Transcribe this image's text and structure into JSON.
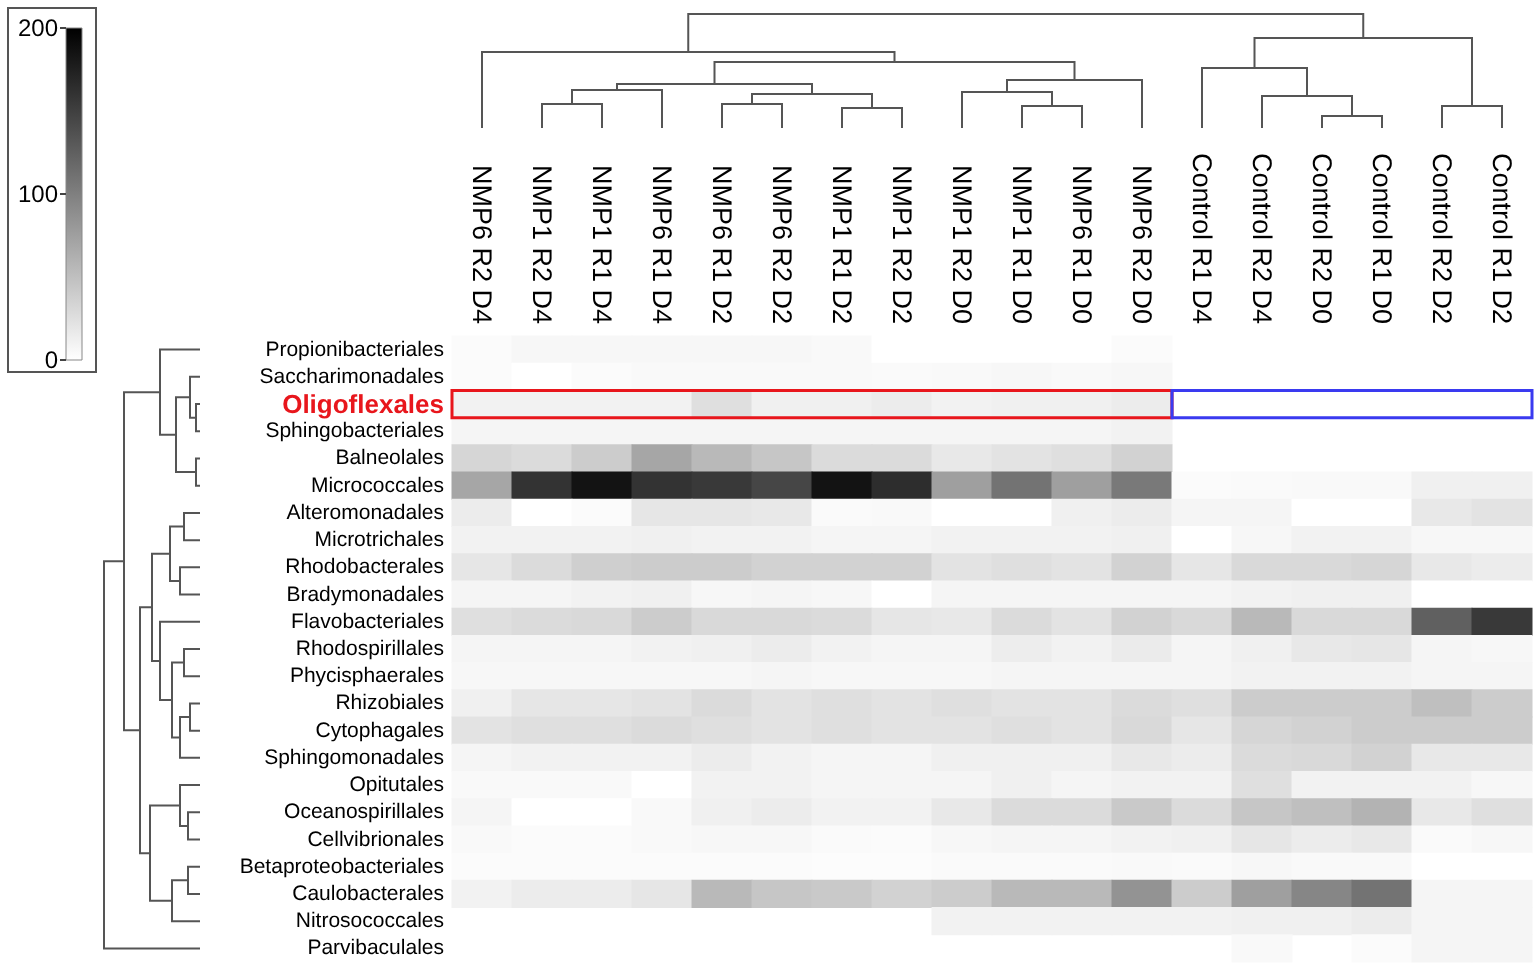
{
  "chart_data": {
    "type": "heatmap",
    "categories": [
      "NMP6 R2 D4",
      "NMP1 R2 D4",
      "NMP1 R1 D4",
      "NMP6 R1 D4",
      "NMP6 R1 D2",
      "NMP6 R2 D2",
      "NMP1 R1 D2",
      "NMP1 R2 D2",
      "NMP1 R2 D0",
      "NMP1 R1 D0",
      "NMP6 R1 D0",
      "NMP6 R2 D0",
      "Control R1 D4",
      "Control R2 D4",
      "Control R2 D0",
      "Control R1 D0",
      "Control R2 D2",
      "Control R1 D2"
    ],
    "y_categories": [
      "Propionibacteriales",
      "Saccharimonadales",
      "Oligoflexales",
      "Sphingobacteriales",
      "Balneolales",
      "Micrococcales",
      "Alteromonadales",
      "Microtrichales",
      "Rhodobacterales",
      "Bradymonadales",
      "Flavobacteriales",
      "Rhodospirillales",
      "Phycisphaerales",
      "Rhizobiales",
      "Cytophagales",
      "Sphingomonadales",
      "Opitutales",
      "Oceanospirillales",
      "Cellvibrionales",
      "Betaproteobacteriales",
      "Caulobacterales",
      "Nitrosococcales",
      "Parvibaculales"
    ],
    "cells": [
      [
        3,
        6,
        6,
        6,
        6,
        6,
        5,
        0,
        0,
        0,
        0,
        3,
        null,
        null,
        null,
        null,
        null,
        null
      ],
      [
        3,
        0,
        3,
        5,
        5,
        5,
        5,
        4,
        5,
        6,
        5,
        6,
        null,
        null,
        null,
        null,
        null,
        null
      ],
      [
        10,
        10,
        10,
        10,
        25,
        12,
        12,
        15,
        10,
        12,
        12,
        15,
        null,
        null,
        null,
        null,
        null,
        null
      ],
      [
        8,
        8,
        8,
        8,
        8,
        8,
        8,
        8,
        8,
        8,
        8,
        10,
        null,
        null,
        null,
        null,
        null,
        null
      ],
      [
        32,
        28,
        40,
        70,
        55,
        45,
        28,
        28,
        18,
        22,
        25,
        35,
        null,
        null,
        null,
        null,
        null,
        null
      ],
      [
        70,
        160,
        185,
        160,
        155,
        145,
        185,
        165,
        75,
        110,
        75,
        105,
        3,
        4,
        5,
        5,
        12,
        12
      ],
      [
        15,
        0,
        3,
        20,
        20,
        18,
        4,
        5,
        0,
        0,
        12,
        15,
        8,
        8,
        0,
        0,
        18,
        22
      ],
      [
        10,
        10,
        10,
        12,
        10,
        10,
        8,
        8,
        10,
        10,
        10,
        12,
        0,
        6,
        10,
        10,
        6,
        6
      ],
      [
        20,
        28,
        38,
        40,
        40,
        35,
        35,
        35,
        22,
        25,
        22,
        35,
        20,
        30,
        30,
        32,
        18,
        15
      ],
      [
        8,
        8,
        10,
        12,
        6,
        8,
        6,
        0,
        8,
        8,
        8,
        8,
        8,
        10,
        12,
        12,
        0,
        0
      ],
      [
        25,
        28,
        30,
        40,
        30,
        30,
        28,
        20,
        18,
        28,
        22,
        35,
        30,
        55,
        30,
        30,
        125,
        155
      ],
      [
        8,
        8,
        8,
        10,
        12,
        15,
        10,
        8,
        8,
        14,
        10,
        16,
        8,
        12,
        18,
        20,
        8,
        6
      ],
      [
        6,
        6,
        6,
        6,
        6,
        8,
        6,
        6,
        6,
        8,
        8,
        8,
        8,
        10,
        10,
        10,
        8,
        8
      ],
      [
        12,
        20,
        20,
        22,
        28,
        22,
        25,
        22,
        25,
        22,
        22,
        28,
        25,
        40,
        40,
        40,
        50,
        40
      ],
      [
        22,
        25,
        25,
        28,
        25,
        22,
        25,
        22,
        22,
        25,
        22,
        30,
        20,
        32,
        35,
        40,
        40,
        40
      ],
      [
        8,
        10,
        10,
        10,
        15,
        10,
        8,
        8,
        12,
        12,
        12,
        18,
        15,
        28,
        30,
        35,
        18,
        18
      ],
      [
        5,
        5,
        5,
        0,
        10,
        10,
        8,
        8,
        8,
        12,
        8,
        10,
        10,
        25,
        10,
        10,
        10,
        6
      ],
      [
        8,
        0,
        0,
        5,
        12,
        15,
        10,
        10,
        18,
        28,
        28,
        42,
        28,
        45,
        50,
        60,
        18,
        25
      ],
      [
        5,
        3,
        3,
        5,
        6,
        6,
        4,
        3,
        6,
        8,
        8,
        10,
        12,
        20,
        15,
        18,
        4,
        6
      ],
      [
        3,
        3,
        3,
        3,
        3,
        3,
        2,
        2,
        4,
        4,
        4,
        5,
        4,
        6,
        5,
        5,
        0,
        0
      ],
      [
        10,
        15,
        15,
        20,
        55,
        45,
        42,
        35,
        40,
        55,
        55,
        85,
        40,
        75,
        95,
        110,
        8,
        8
      ],
      [
        null,
        null,
        null,
        null,
        null,
        null,
        null,
        null,
        10,
        10,
        10,
        10,
        10,
        12,
        12,
        15,
        8,
        8
      ],
      [
        null,
        null,
        null,
        null,
        null,
        null,
        null,
        null,
        null,
        null,
        null,
        null,
        null,
        5,
        null,
        3,
        8,
        8
      ]
    ],
    "clim": [
      0,
      200
    ],
    "cticks": [
      0,
      100,
      200
    ]
  }
}
